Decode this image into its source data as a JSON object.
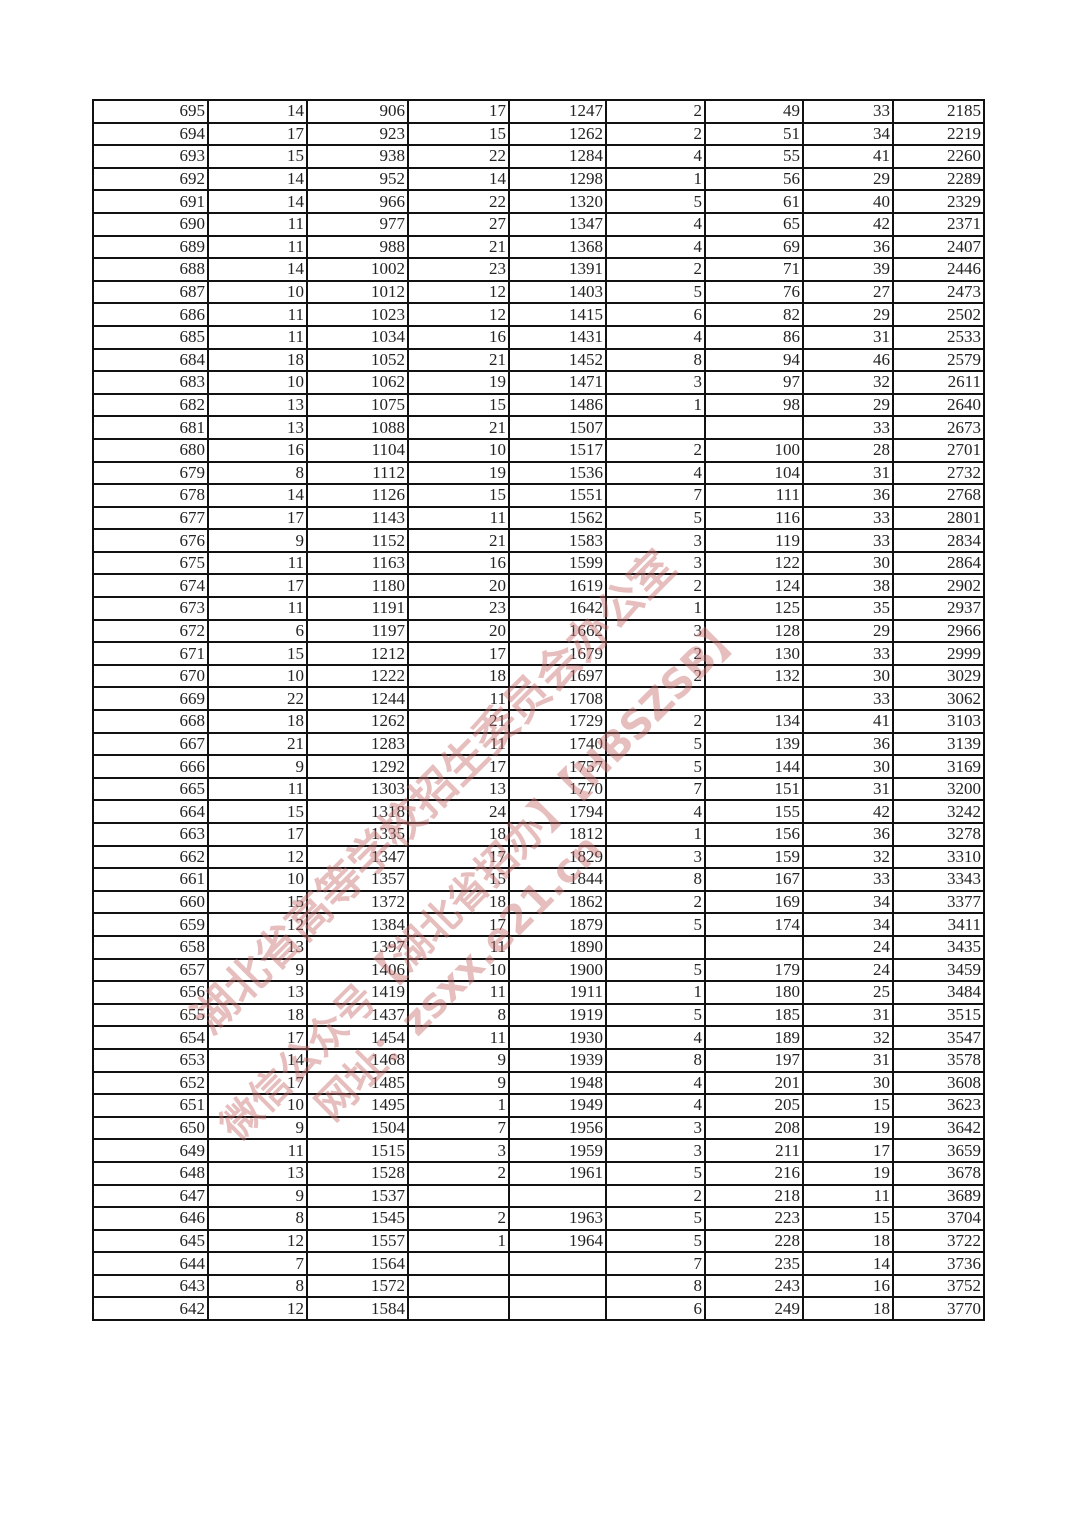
{
  "table": {
    "rows": [
      [
        "695",
        "14",
        "906",
        "17",
        "1247",
        "2",
        "49",
        "33",
        "2185"
      ],
      [
        "694",
        "17",
        "923",
        "15",
        "1262",
        "2",
        "51",
        "34",
        "2219"
      ],
      [
        "693",
        "15",
        "938",
        "22",
        "1284",
        "4",
        "55",
        "41",
        "2260"
      ],
      [
        "692",
        "14",
        "952",
        "14",
        "1298",
        "1",
        "56",
        "29",
        "2289"
      ],
      [
        "691",
        "14",
        "966",
        "22",
        "1320",
        "5",
        "61",
        "40",
        "2329"
      ],
      [
        "690",
        "11",
        "977",
        "27",
        "1347",
        "4",
        "65",
        "42",
        "2371"
      ],
      [
        "689",
        "11",
        "988",
        "21",
        "1368",
        "4",
        "69",
        "36",
        "2407"
      ],
      [
        "688",
        "14",
        "1002",
        "23",
        "1391",
        "2",
        "71",
        "39",
        "2446"
      ],
      [
        "687",
        "10",
        "1012",
        "12",
        "1403",
        "5",
        "76",
        "27",
        "2473"
      ],
      [
        "686",
        "11",
        "1023",
        "12",
        "1415",
        "6",
        "82",
        "29",
        "2502"
      ],
      [
        "685",
        "11",
        "1034",
        "16",
        "1431",
        "4",
        "86",
        "31",
        "2533"
      ],
      [
        "684",
        "18",
        "1052",
        "21",
        "1452",
        "8",
        "94",
        "46",
        "2579"
      ],
      [
        "683",
        "10",
        "1062",
        "19",
        "1471",
        "3",
        "97",
        "32",
        "2611"
      ],
      [
        "682",
        "13",
        "1075",
        "15",
        "1486",
        "1",
        "98",
        "29",
        "2640"
      ],
      [
        "681",
        "13",
        "1088",
        "21",
        "1507",
        "",
        "",
        "33",
        "2673"
      ],
      [
        "680",
        "16",
        "1104",
        "10",
        "1517",
        "2",
        "100",
        "28",
        "2701"
      ],
      [
        "679",
        "8",
        "1112",
        "19",
        "1536",
        "4",
        "104",
        "31",
        "2732"
      ],
      [
        "678",
        "14",
        "1126",
        "15",
        "1551",
        "7",
        "111",
        "36",
        "2768"
      ],
      [
        "677",
        "17",
        "1143",
        "11",
        "1562",
        "5",
        "116",
        "33",
        "2801"
      ],
      [
        "676",
        "9",
        "1152",
        "21",
        "1583",
        "3",
        "119",
        "33",
        "2834"
      ],
      [
        "675",
        "11",
        "1163",
        "16",
        "1599",
        "3",
        "122",
        "30",
        "2864"
      ],
      [
        "674",
        "17",
        "1180",
        "20",
        "1619",
        "2",
        "124",
        "38",
        "2902"
      ],
      [
        "673",
        "11",
        "1191",
        "23",
        "1642",
        "1",
        "125",
        "35",
        "2937"
      ],
      [
        "672",
        "6",
        "1197",
        "20",
        "1662",
        "3",
        "128",
        "29",
        "2966"
      ],
      [
        "671",
        "15",
        "1212",
        "17",
        "1679",
        "2",
        "130",
        "33",
        "2999"
      ],
      [
        "670",
        "10",
        "1222",
        "18",
        "1697",
        "2",
        "132",
        "30",
        "3029"
      ],
      [
        "669",
        "22",
        "1244",
        "11",
        "1708",
        "",
        "",
        "33",
        "3062"
      ],
      [
        "668",
        "18",
        "1262",
        "21",
        "1729",
        "2",
        "134",
        "41",
        "3103"
      ],
      [
        "667",
        "21",
        "1283",
        "11",
        "1740",
        "5",
        "139",
        "36",
        "3139"
      ],
      [
        "666",
        "9",
        "1292",
        "17",
        "1757",
        "5",
        "144",
        "30",
        "3169"
      ],
      [
        "665",
        "11",
        "1303",
        "13",
        "1770",
        "7",
        "151",
        "31",
        "3200"
      ],
      [
        "664",
        "15",
        "1318",
        "24",
        "1794",
        "4",
        "155",
        "42",
        "3242"
      ],
      [
        "663",
        "17",
        "1335",
        "18",
        "1812",
        "1",
        "156",
        "36",
        "3278"
      ],
      [
        "662",
        "12",
        "1347",
        "17",
        "1829",
        "3",
        "159",
        "32",
        "3310"
      ],
      [
        "661",
        "10",
        "1357",
        "15",
        "1844",
        "8",
        "167",
        "33",
        "3343"
      ],
      [
        "660",
        "15",
        "1372",
        "18",
        "1862",
        "2",
        "169",
        "34",
        "3377"
      ],
      [
        "659",
        "12",
        "1384",
        "17",
        "1879",
        "5",
        "174",
        "34",
        "3411"
      ],
      [
        "658",
        "13",
        "1397",
        "11",
        "1890",
        "",
        "",
        "24",
        "3435"
      ],
      [
        "657",
        "9",
        "1406",
        "10",
        "1900",
        "5",
        "179",
        "24",
        "3459"
      ],
      [
        "656",
        "13",
        "1419",
        "11",
        "1911",
        "1",
        "180",
        "25",
        "3484"
      ],
      [
        "655",
        "18",
        "1437",
        "8",
        "1919",
        "5",
        "185",
        "31",
        "3515"
      ],
      [
        "654",
        "17",
        "1454",
        "11",
        "1930",
        "4",
        "189",
        "32",
        "3547"
      ],
      [
        "653",
        "14",
        "1468",
        "9",
        "1939",
        "8",
        "197",
        "31",
        "3578"
      ],
      [
        "652",
        "17",
        "1485",
        "9",
        "1948",
        "4",
        "201",
        "30",
        "3608"
      ],
      [
        "651",
        "10",
        "1495",
        "1",
        "1949",
        "4",
        "205",
        "15",
        "3623"
      ],
      [
        "650",
        "9",
        "1504",
        "7",
        "1956",
        "3",
        "208",
        "19",
        "3642"
      ],
      [
        "649",
        "11",
        "1515",
        "3",
        "1959",
        "3",
        "211",
        "17",
        "3659"
      ],
      [
        "648",
        "13",
        "1528",
        "2",
        "1961",
        "5",
        "216",
        "19",
        "3678"
      ],
      [
        "647",
        "9",
        "1537",
        "",
        "",
        "2",
        "218",
        "11",
        "3689"
      ],
      [
        "646",
        "8",
        "1545",
        "2",
        "1963",
        "5",
        "223",
        "15",
        "3704"
      ],
      [
        "645",
        "12",
        "1557",
        "1",
        "1964",
        "5",
        "228",
        "18",
        "3722"
      ],
      [
        "644",
        "7",
        "1564",
        "",
        "",
        "7",
        "235",
        "14",
        "3736"
      ],
      [
        "643",
        "8",
        "1572",
        "",
        "",
        "8",
        "243",
        "16",
        "3752"
      ],
      [
        "642",
        "12",
        "1584",
        "",
        "",
        "6",
        "249",
        "18",
        "3770"
      ]
    ]
  },
  "watermark": {
    "line1": "湖北省高等学校招生委员会办公室",
    "line2": "微信公众号【湖北省招办】【HBSZSB】",
    "line3": "网址：zsxx.e21.cn"
  },
  "colors": {
    "watermark": "#c86e6e",
    "grid": "#111111"
  }
}
